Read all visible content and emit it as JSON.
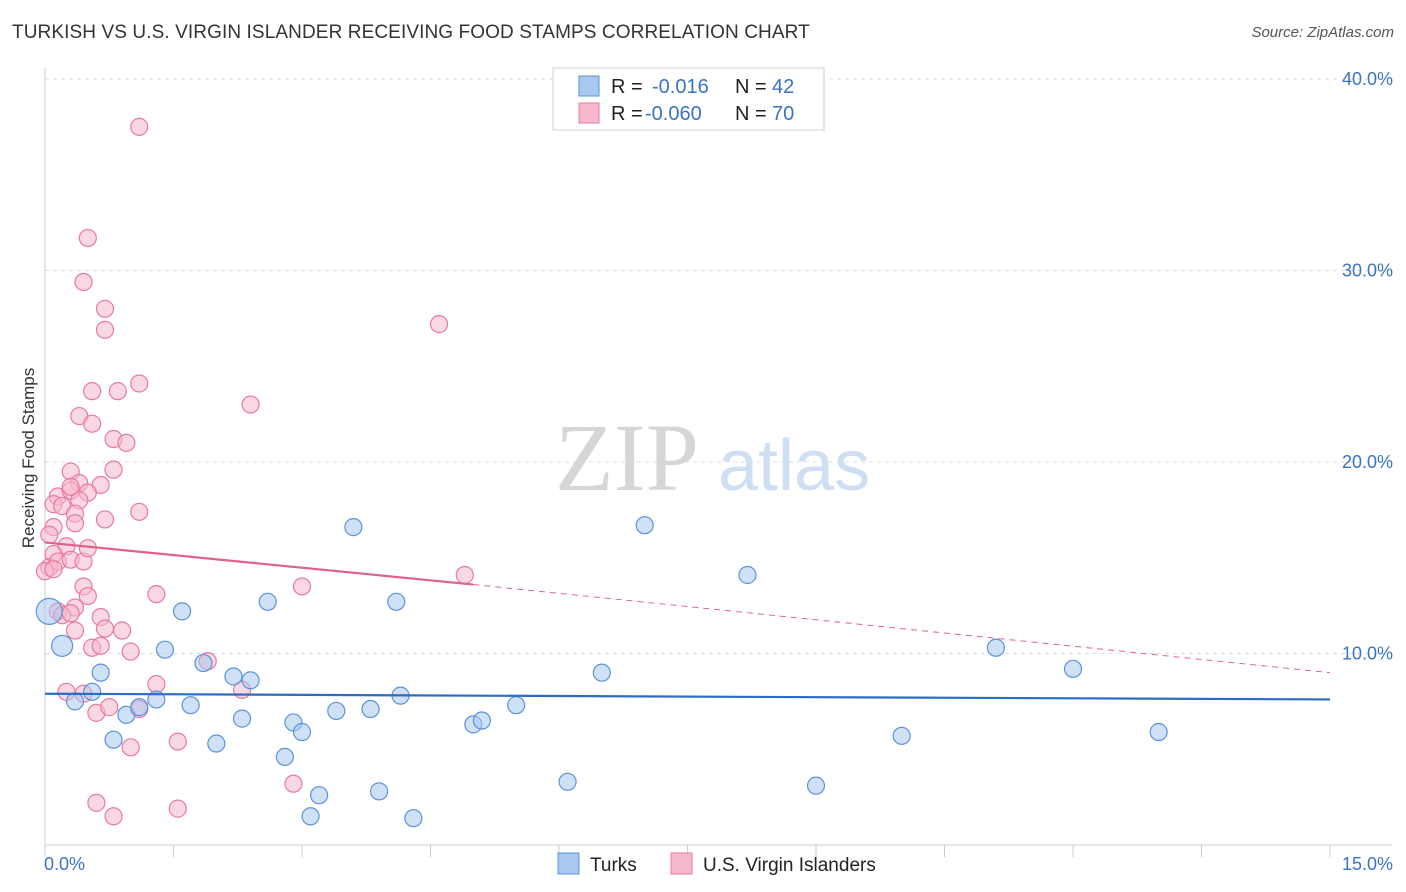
{
  "title": "TURKISH VS U.S. VIRGIN ISLANDER RECEIVING FOOD STAMPS CORRELATION CHART",
  "source": "Source: ZipAtlas.com",
  "watermark": {
    "zip": "ZIP",
    "atlas": "atlas"
  },
  "legend": {
    "rows": [
      {
        "r_label": "R =",
        "r_value": "-0.016",
        "n_label": "N =",
        "n_value": "42",
        "color": "#a8c8f0"
      },
      {
        "r_label": "R =",
        "r_value": "-0.060",
        "n_label": "N =",
        "n_value": "70",
        "color": "#f5b8cb"
      }
    ]
  },
  "bottom_legend": [
    {
      "label": "Turks",
      "color": "#a8c8f0"
    },
    {
      "label": "U.S. Virgin Islanders",
      "color": "#f5b8cb"
    }
  ],
  "chart_data": {
    "type": "scatter",
    "title": "TURKISH VS U.S. VIRGIN ISLANDER RECEIVING FOOD STAMPS CORRELATION CHART",
    "xlabel": "",
    "ylabel": "Receiving Food Stamps",
    "xlim": [
      0,
      15
    ],
    "ylim": [
      0,
      40
    ],
    "x_tick_labels": {
      "min": "0.0%",
      "max": "15.0%"
    },
    "y_ticks": [
      10,
      20,
      30,
      40
    ],
    "y_tick_labels": [
      "10.0%",
      "20.0%",
      "30.0%",
      "40.0%"
    ],
    "series": [
      {
        "name": "Turks",
        "color": "#5b93d8",
        "fill": "#a8c8f0",
        "trend": {
          "x0": 0,
          "y0": 7.9,
          "x1": 15,
          "y1": 7.6,
          "color": "#2d6cc4"
        },
        "points": [
          [
            0.05,
            12.2
          ],
          [
            0.2,
            10.4
          ],
          [
            0.35,
            7.5
          ],
          [
            0.55,
            8.0
          ],
          [
            0.65,
            9.0
          ],
          [
            0.8,
            5.5
          ],
          [
            0.95,
            6.8
          ],
          [
            1.1,
            7.2
          ],
          [
            1.3,
            7.6
          ],
          [
            1.4,
            10.2
          ],
          [
            1.6,
            12.2
          ],
          [
            1.7,
            7.3
          ],
          [
            1.85,
            9.5
          ],
          [
            2.0,
            5.3
          ],
          [
            2.2,
            8.8
          ],
          [
            2.3,
            6.6
          ],
          [
            2.4,
            8.6
          ],
          [
            2.6,
            12.7
          ],
          [
            2.8,
            4.6
          ],
          [
            2.9,
            6.4
          ],
          [
            3.0,
            5.9
          ],
          [
            3.1,
            1.5
          ],
          [
            3.2,
            2.6
          ],
          [
            3.4,
            7.0
          ],
          [
            3.6,
            16.6
          ],
          [
            3.8,
            7.1
          ],
          [
            3.9,
            2.8
          ],
          [
            4.1,
            12.7
          ],
          [
            4.15,
            7.8
          ],
          [
            4.3,
            1.4
          ],
          [
            5.0,
            6.3
          ],
          [
            5.1,
            6.5
          ],
          [
            5.5,
            7.3
          ],
          [
            6.1,
            3.3
          ],
          [
            6.5,
            9.0
          ],
          [
            7.0,
            16.7
          ],
          [
            8.2,
            14.1
          ],
          [
            9.0,
            3.1
          ],
          [
            10.0,
            5.7
          ],
          [
            11.1,
            10.3
          ],
          [
            12.0,
            9.2
          ],
          [
            13.0,
            5.9
          ]
        ]
      },
      {
        "name": "U.S. Virgin Islanders",
        "color": "#e87aa0",
        "fill": "#f5b8cb",
        "trend": {
          "x0": 0,
          "y0": 15.8,
          "x1": 5.0,
          "y1": 13.6,
          "color": "#e0608f"
        },
        "trend_dashed": {
          "x0": 5.0,
          "y0": 13.6,
          "x1": 15,
          "y1": 9.0
        },
        "points": [
          [
            1.1,
            37.5
          ],
          [
            0.5,
            31.7
          ],
          [
            0.45,
            29.4
          ],
          [
            0.7,
            28.0
          ],
          [
            0.7,
            26.9
          ],
          [
            4.6,
            27.2
          ],
          [
            1.1,
            24.1
          ],
          [
            0.55,
            23.7
          ],
          [
            0.85,
            23.7
          ],
          [
            2.4,
            23.0
          ],
          [
            0.4,
            22.4
          ],
          [
            0.55,
            22.0
          ],
          [
            0.8,
            21.2
          ],
          [
            0.95,
            21.0
          ],
          [
            0.3,
            19.5
          ],
          [
            0.8,
            19.6
          ],
          [
            0.4,
            18.9
          ],
          [
            0.65,
            18.8
          ],
          [
            0.15,
            18.2
          ],
          [
            0.3,
            18.5
          ],
          [
            0.5,
            18.4
          ],
          [
            0.1,
            17.8
          ],
          [
            0.2,
            17.7
          ],
          [
            0.4,
            18.0
          ],
          [
            0.35,
            17.3
          ],
          [
            0.35,
            16.8
          ],
          [
            0.7,
            17.0
          ],
          [
            1.1,
            17.4
          ],
          [
            0.1,
            16.6
          ],
          [
            0.25,
            15.6
          ],
          [
            0.1,
            15.2
          ],
          [
            0.05,
            14.5
          ],
          [
            0.15,
            14.8
          ],
          [
            0.3,
            14.9
          ],
          [
            0.45,
            14.8
          ],
          [
            0.5,
            15.5
          ],
          [
            0.0,
            14.3
          ],
          [
            0.1,
            14.4
          ],
          [
            0.45,
            13.5
          ],
          [
            0.5,
            13.0
          ],
          [
            1.3,
            13.1
          ],
          [
            3.0,
            13.5
          ],
          [
            4.9,
            14.1
          ],
          [
            0.15,
            12.2
          ],
          [
            0.35,
            12.4
          ],
          [
            0.2,
            12.0
          ],
          [
            0.3,
            12.1
          ],
          [
            0.65,
            11.9
          ],
          [
            0.35,
            11.2
          ],
          [
            0.7,
            11.3
          ],
          [
            0.9,
            11.2
          ],
          [
            0.55,
            10.3
          ],
          [
            0.65,
            10.4
          ],
          [
            1.0,
            10.1
          ],
          [
            1.3,
            8.4
          ],
          [
            1.9,
            9.6
          ],
          [
            2.3,
            8.1
          ],
          [
            0.45,
            7.9
          ],
          [
            0.6,
            6.9
          ],
          [
            0.75,
            7.2
          ],
          [
            1.1,
            7.1
          ],
          [
            1.55,
            5.4
          ],
          [
            1.0,
            5.1
          ],
          [
            0.6,
            2.2
          ],
          [
            0.8,
            1.5
          ],
          [
            1.55,
            1.9
          ],
          [
            2.9,
            3.2
          ],
          [
            0.25,
            8.0
          ],
          [
            0.05,
            16.2
          ],
          [
            0.3,
            18.7
          ]
        ]
      }
    ]
  }
}
